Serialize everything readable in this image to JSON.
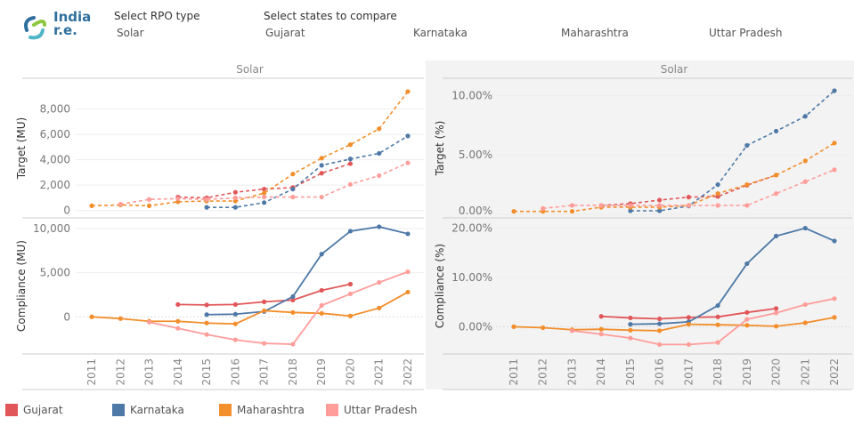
{
  "header": {
    "logo_text_1": "India",
    "logo_text_2": "r.e.",
    "rpo_label": "Select RPO type",
    "rpo_value": "Solar",
    "states_label": "Select states to compare",
    "states": [
      "Gujarat",
      "Karnataka",
      "Maharashtra",
      "Uttar Pradesh"
    ]
  },
  "colors": {
    "Gujarat": "#e15759",
    "Karnataka": "#4e79a7",
    "Maharashtra": "#f28e2b",
    "Uttar Pradesh": "#ff9d9a"
  },
  "chart_data": [
    {
      "type": "line",
      "panel_title": "Solar",
      "ylabel": "Target (MU)",
      "line_style": "dashed",
      "yticks": [
        0,
        2000,
        4000,
        6000,
        8000
      ],
      "ytick_labels": [
        "0",
        "2,000",
        "4,000",
        "6,000",
        "8,000"
      ],
      "ylim": [
        -300,
        10000
      ],
      "x": [
        2011,
        2012,
        2013,
        2014,
        2015,
        2016,
        2017,
        2018,
        2019,
        2020,
        2021,
        2022
      ],
      "series": [
        {
          "name": "Gujarat",
          "values": [
            null,
            null,
            null,
            1060,
            1000,
            1440,
            1690,
            1810,
            2940,
            3690,
            null,
            null
          ]
        },
        {
          "name": "Karnataka",
          "values": [
            null,
            null,
            null,
            null,
            250,
            250,
            625,
            1690,
            3560,
            4060,
            4500,
            5875
          ]
        },
        {
          "name": "Maharashtra",
          "values": [
            375,
            440,
            375,
            690,
            750,
            750,
            1375,
            2875,
            4125,
            5190,
            6440,
            9375
          ]
        },
        {
          "name": "Uttar Pradesh",
          "values": [
            null,
            500,
            875,
            940,
            875,
            1000,
            1060,
            1060,
            1060,
            2060,
            2750,
            3750
          ]
        }
      ]
    },
    {
      "type": "line",
      "ylabel": "Compliance (MU)",
      "line_style": "solid",
      "yticks": [
        0,
        5000,
        10000
      ],
      "ytick_labels": [
        "0",
        "5,000",
        "10,000"
      ],
      "ylim": [
        -3800,
        10600
      ],
      "x": [
        2011,
        2012,
        2013,
        2014,
        2015,
        2016,
        2017,
        2018,
        2019,
        2020,
        2021,
        2022
      ],
      "series": [
        {
          "name": "Gujarat",
          "values": [
            null,
            null,
            null,
            1400,
            1350,
            1400,
            1700,
            1900,
            3000,
            3700,
            null,
            null
          ]
        },
        {
          "name": "Karnataka",
          "values": [
            null,
            null,
            null,
            null,
            250,
            300,
            600,
            2300,
            7100,
            9700,
            10200,
            9400
          ]
        },
        {
          "name": "Maharashtra",
          "values": [
            0,
            -200,
            -500,
            -500,
            -700,
            -800,
            700,
            500,
            400,
            100,
            1000,
            2800
          ]
        },
        {
          "name": "Uttar Pradesh",
          "values": [
            null,
            null,
            -600,
            -1300,
            -2000,
            -2600,
            -3000,
            -3100,
            1300,
            2600,
            3900,
            5100
          ]
        }
      ]
    },
    {
      "type": "line",
      "panel_title": "Solar",
      "ylabel": "Target (%)",
      "line_style": "dashed",
      "yticks": [
        0,
        5,
        10
      ],
      "ytick_labels": [
        "0.00%",
        "5.00%",
        "10.00%"
      ],
      "ylim": [
        0,
        11
      ],
      "x": [
        2011,
        2012,
        2013,
        2014,
        2015,
        2016,
        2017,
        2018,
        2019,
        2020,
        2021,
        2022
      ],
      "series": [
        {
          "name": "Gujarat",
          "values": [
            null,
            null,
            null,
            0.75,
            0.9,
            1.2,
            1.45,
            1.5,
            2.45,
            3.3,
            null,
            null
          ]
        },
        {
          "name": "Karnataka",
          "values": [
            null,
            null,
            null,
            null,
            0.3,
            0.3,
            0.7,
            2.5,
            5.8,
            7.0,
            8.25,
            10.4
          ]
        },
        {
          "name": "Maharashtra",
          "values": [
            0.25,
            0.25,
            0.25,
            0.6,
            0.6,
            0.6,
            0.75,
            1.75,
            2.5,
            3.3,
            4.5,
            6.0
          ]
        },
        {
          "name": "Uttar Pradesh",
          "values": [
            null,
            0.5,
            0.75,
            0.75,
            0.75,
            0.75,
            0.75,
            0.75,
            0.75,
            1.75,
            2.75,
            3.75
          ]
        }
      ]
    },
    {
      "type": "line",
      "ylabel": "Compliance (%)",
      "line_style": "solid",
      "yticks": [
        0,
        10,
        20
      ],
      "ytick_labels": [
        "0.00%",
        "10.00%",
        "20.00%"
      ],
      "ylim": [
        -4.8,
        21
      ],
      "x": [
        2011,
        2012,
        2013,
        2014,
        2015,
        2016,
        2017,
        2018,
        2019,
        2020,
        2021,
        2022
      ],
      "series": [
        {
          "name": "Gujarat",
          "values": [
            null,
            null,
            null,
            2.1,
            1.8,
            1.6,
            1.9,
            2.0,
            2.9,
            3.7,
            null,
            null
          ]
        },
        {
          "name": "Karnataka",
          "values": [
            null,
            null,
            null,
            null,
            0.5,
            0.6,
            1.0,
            4.3,
            12.8,
            18.4,
            20.0,
            17.4
          ]
        },
        {
          "name": "Maharashtra",
          "values": [
            0,
            -0.2,
            -0.6,
            -0.5,
            -0.7,
            -0.8,
            0.5,
            0.4,
            0.3,
            0.1,
            0.8,
            1.9
          ]
        },
        {
          "name": "Uttar Pradesh",
          "values": [
            null,
            null,
            -0.8,
            -1.5,
            -2.3,
            -3.6,
            -3.6,
            -3.2,
            1.5,
            2.8,
            4.5,
            5.7
          ]
        }
      ]
    }
  ],
  "legend": [
    "Gujarat",
    "Karnataka",
    "Maharashtra",
    "Uttar Pradesh"
  ]
}
